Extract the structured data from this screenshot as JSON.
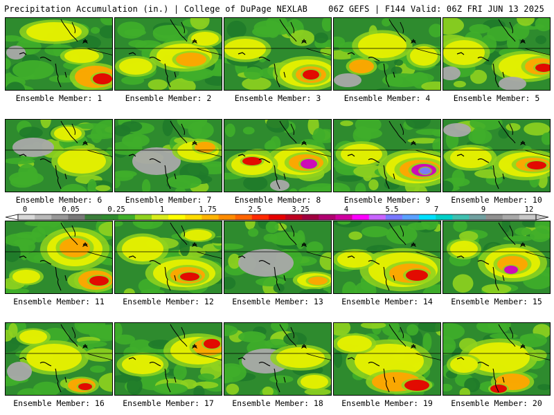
{
  "header": {
    "left": "Precipitation Accumulation (in.) | College of DuPage NEXLAB",
    "right": "06Z GEFS | F144 Valid: 06Z FRI JUN 13 2025"
  },
  "colorbar": {
    "tick_labels": [
      "0",
      "0.05",
      "0.25",
      "1",
      "1.75",
      "2.5",
      "3.25",
      "4",
      "5.5",
      "7",
      "9",
      "12"
    ],
    "colors": [
      "#d8d8d8",
      "#b8b8b8",
      "#989898",
      "#787878",
      "#3a7d3a",
      "#2e8b2e",
      "#3fae2a",
      "#8fd21f",
      "#d8ec1c",
      "#ffff00",
      "#ffdc00",
      "#ffb400",
      "#ff8c00",
      "#ff6400",
      "#ff2a00",
      "#e60000",
      "#bf0020",
      "#a00040",
      "#b00070",
      "#d000a0",
      "#ff00ff",
      "#c864ff",
      "#7878ff",
      "#5aa0ff",
      "#00e0ff",
      "#00d0c8",
      "#40c0b0",
      "#70a0a0",
      "#909090",
      "#a8a8a8",
      "#c8c8c8"
    ]
  },
  "panels": [
    {
      "label": "Ensemble Member: 1"
    },
    {
      "label": "Ensemble Member: 2"
    },
    {
      "label": "Ensemble Member: 3"
    },
    {
      "label": "Ensemble Member: 4"
    },
    {
      "label": "Ensemble Member: 5"
    },
    {
      "label": "Ensemble Member: 6"
    },
    {
      "label": "Ensemble Member: 7"
    },
    {
      "label": "Ensemble Member: 8"
    },
    {
      "label": "Ensemble Member: 9"
    },
    {
      "label": "Ensemble Member: 10"
    },
    {
      "label": "Ensemble Member: 11"
    },
    {
      "label": "Ensemble Member: 12"
    },
    {
      "label": "Ensemble Member: 13"
    },
    {
      "label": "Ensemble Member: 14"
    },
    {
      "label": "Ensemble Member: 15"
    },
    {
      "label": "Ensemble Member: 16"
    },
    {
      "label": "Ensemble Member: 17"
    },
    {
      "label": "Ensemble Member: 18"
    },
    {
      "label": "Ensemble Member: 19"
    },
    {
      "label": "Ensemble Member: 20"
    }
  ]
}
